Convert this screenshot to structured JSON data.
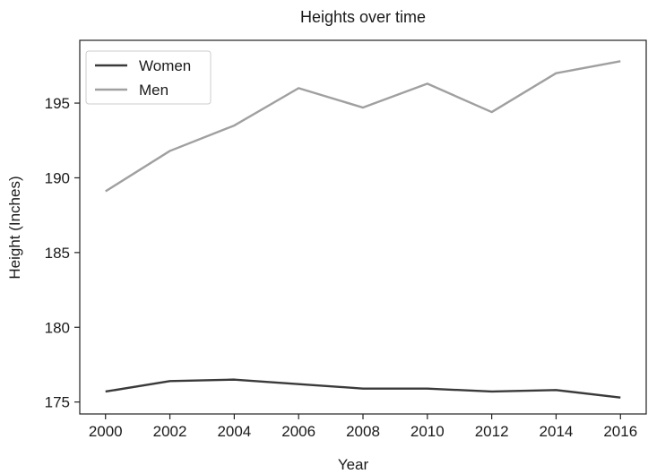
{
  "chart_data": {
    "type": "line",
    "title": "Heights over time",
    "xlabel": "Year",
    "ylabel": "Height (Inches)",
    "x": [
      2000,
      2002,
      2004,
      2006,
      2008,
      2010,
      2012,
      2014,
      2016
    ],
    "xticks": [
      2000,
      2002,
      2004,
      2006,
      2008,
      2010,
      2012,
      2014,
      2016
    ],
    "yticks": [
      175,
      180,
      185,
      190,
      195
    ],
    "xlim": [
      1999.2,
      2016.8
    ],
    "ylim": [
      174.2,
      199.2
    ],
    "grid": false,
    "legend_position": "top-left",
    "series": [
      {
        "name": "Women",
        "color": "#3a3a3a",
        "values": [
          175.7,
          176.4,
          176.5,
          176.2,
          175.9,
          175.9,
          175.7,
          175.8,
          175.3
        ]
      },
      {
        "name": "Men",
        "color": "#a0a0a0",
        "values": [
          189.1,
          191.8,
          193.5,
          196.0,
          194.7,
          196.3,
          194.4,
          197.0,
          197.8
        ]
      }
    ]
  }
}
